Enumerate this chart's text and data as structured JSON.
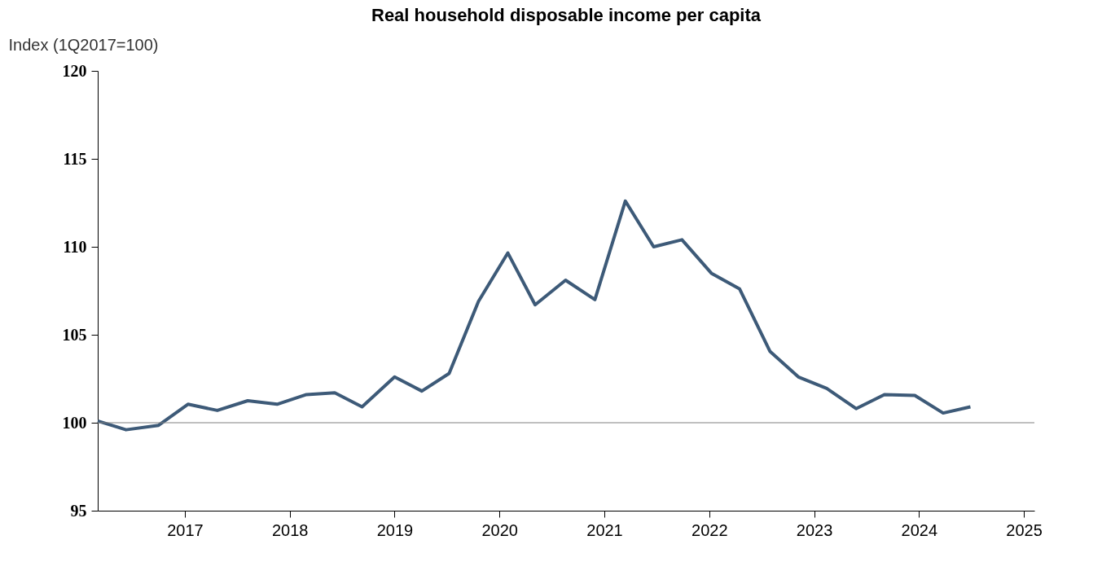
{
  "chart_data": {
    "type": "line",
    "title": "Real household disposable income per capita",
    "ylabel": "Index (1Q2017=100)",
    "x": [
      2016.17,
      2016.44,
      2016.75,
      2017.03,
      2017.31,
      2017.6,
      2017.88,
      2018.16,
      2018.43,
      2018.69,
      2019.0,
      2019.26,
      2019.52,
      2019.8,
      2020.08,
      2020.34,
      2020.63,
      2020.91,
      2021.2,
      2021.47,
      2021.74,
      2022.02,
      2022.29,
      2022.58,
      2022.85,
      2023.12,
      2023.4,
      2023.67,
      2023.96,
      2024.23,
      2024.49
    ],
    "series": [
      {
        "color": "#3d5a78",
        "values": [
          100.1,
          99.6,
          99.85,
          101.05,
          100.7,
          101.25,
          101.05,
          101.6,
          101.7,
          100.9,
          102.6,
          101.8,
          102.8,
          106.9,
          109.65,
          106.7,
          108.1,
          107.0,
          112.6,
          110.0,
          110.4,
          108.5,
          107.6,
          104.05,
          102.6,
          101.95,
          100.8,
          101.6,
          101.55,
          100.55,
          100.9
        ]
      }
    ],
    "xlim": [
      2016.17,
      2025.1
    ],
    "xticks": [
      2017,
      2018,
      2019,
      2020,
      2021,
      2022,
      2023,
      2024,
      2025
    ],
    "ylim": [
      95,
      120
    ],
    "yticks": [
      95,
      100,
      105,
      110,
      115,
      120
    ],
    "ref_lines": [
      {
        "axis": "y",
        "value": 100,
        "color": "#808080"
      }
    ],
    "grid": false,
    "marker": "none",
    "line_style": "solid"
  }
}
